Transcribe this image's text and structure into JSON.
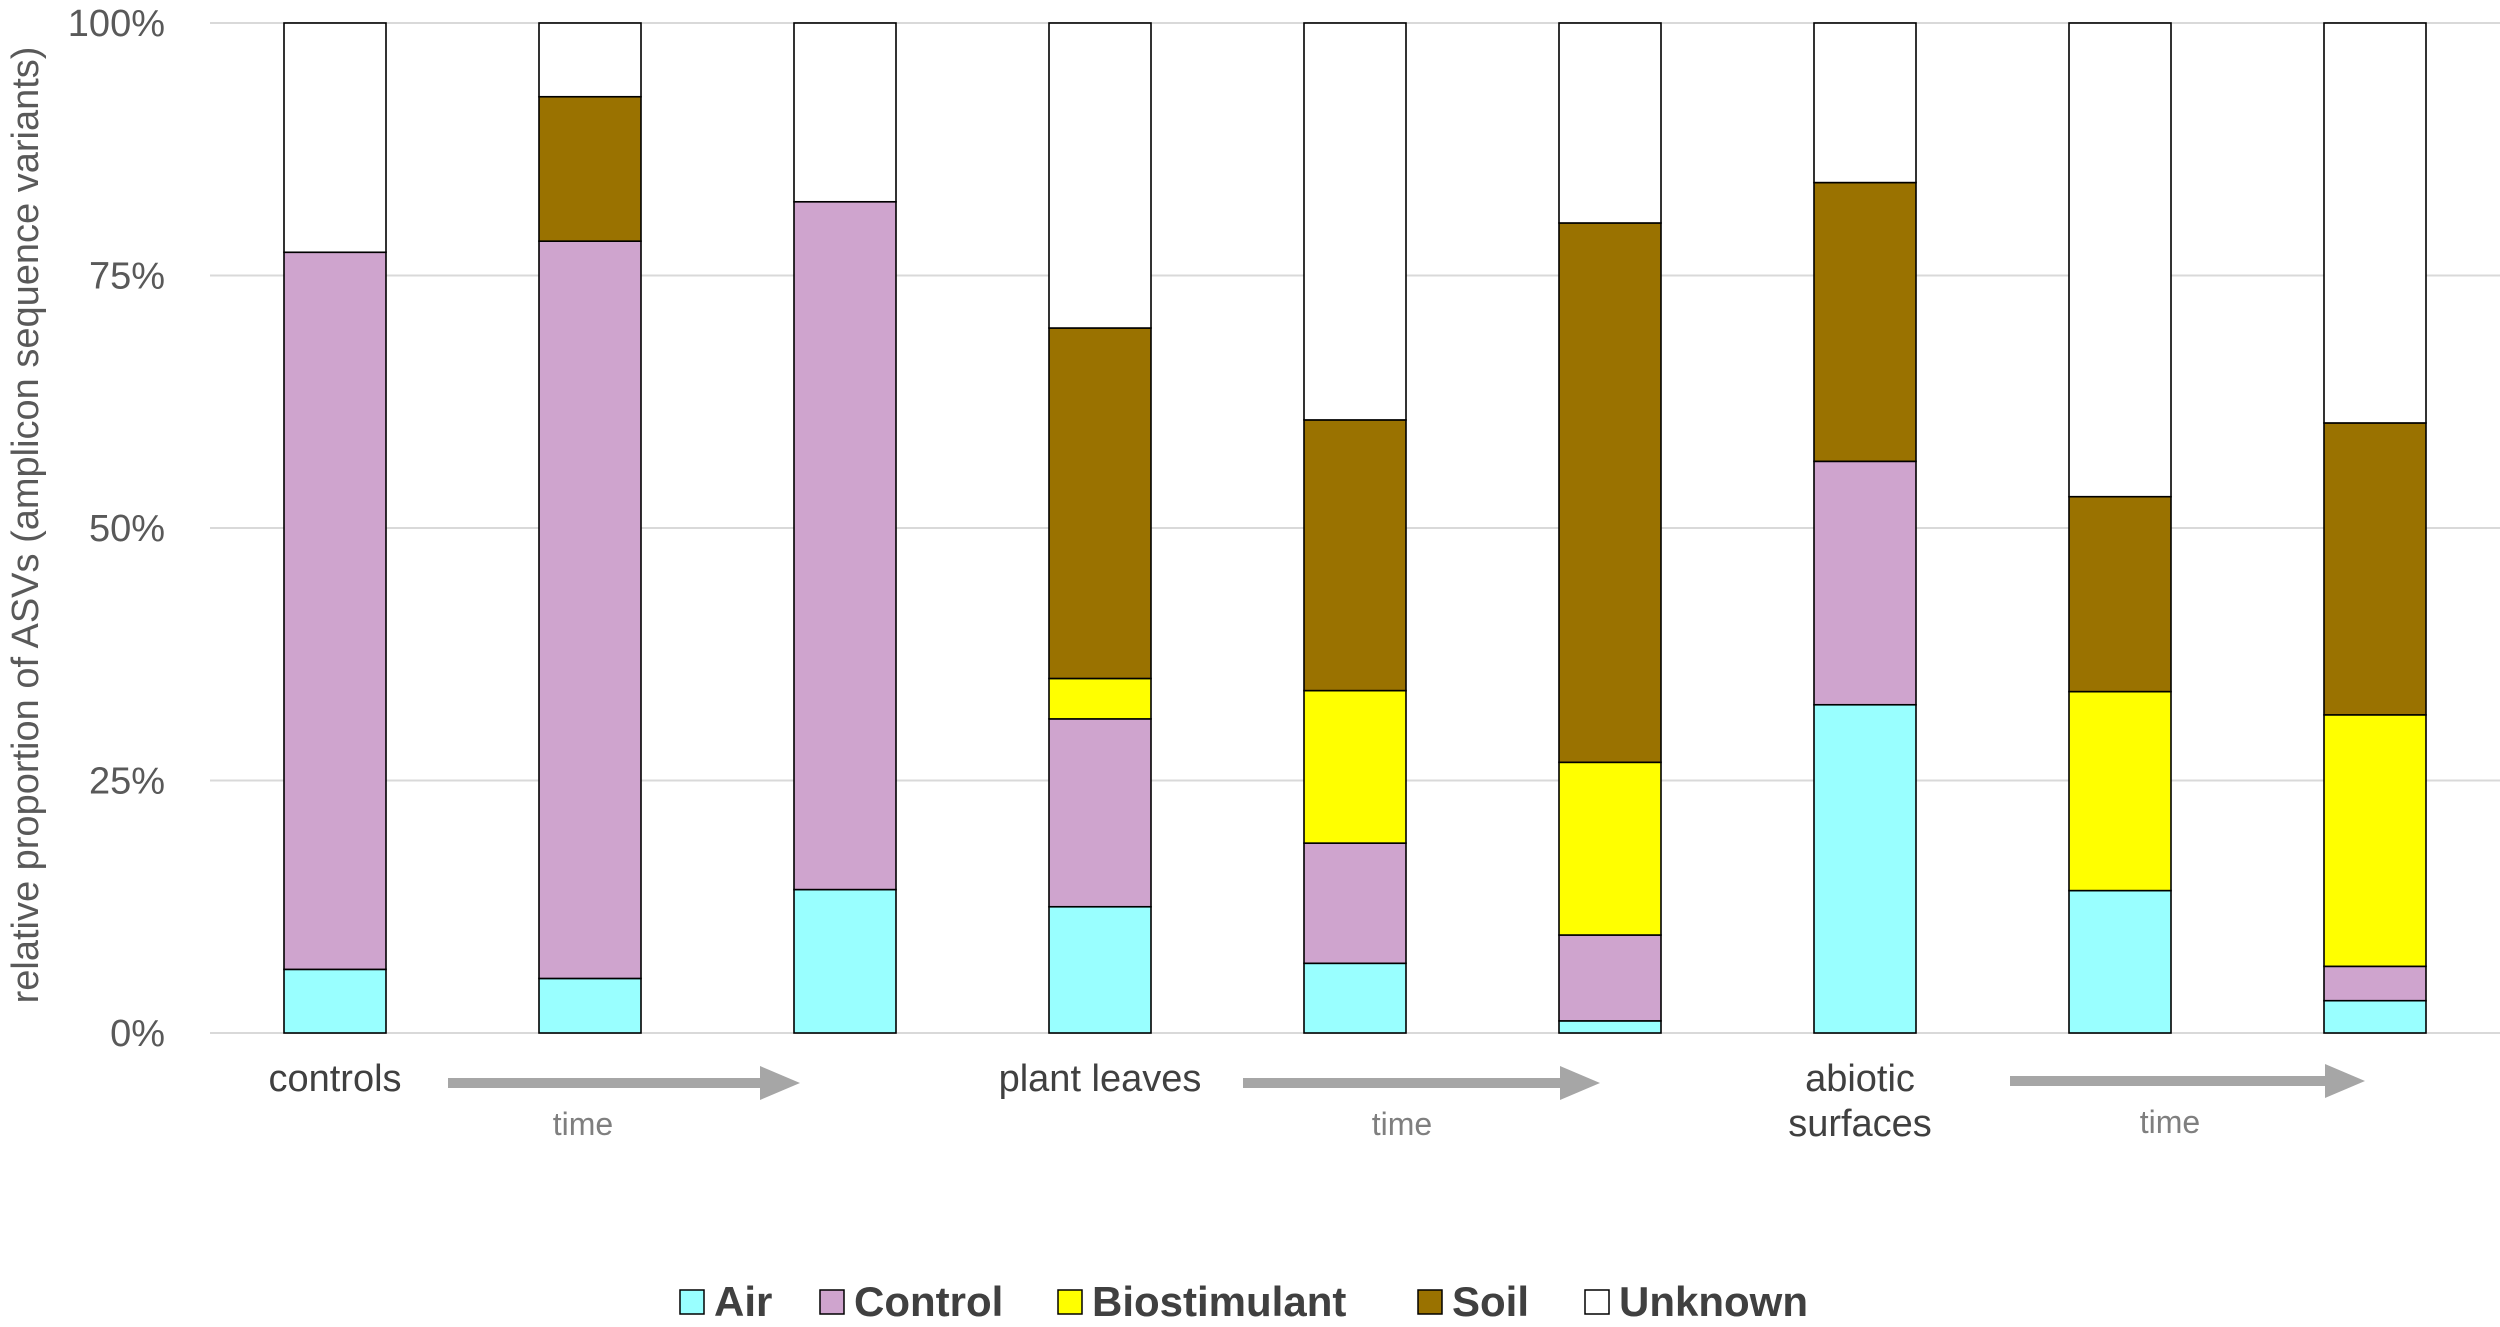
{
  "chart_data": {
    "type": "bar",
    "stacked": true,
    "percent": true,
    "ylabel": "relative proportion of ASVs (amplicon sequence variants)",
    "xlabel": "",
    "ylim": [
      0,
      100
    ],
    "y_ticks": [
      "0%",
      "25%",
      "50%",
      "75%",
      "100%"
    ],
    "grid": true,
    "legend_position": "bottom",
    "groups": [
      {
        "label": "controls",
        "time_label": "time"
      },
      {
        "label": "plant leaves",
        "time_label": "time"
      },
      {
        "label": "abiotic\nsurfaces",
        "time_label": "time"
      }
    ],
    "categories": [
      "",
      "",
      "",
      "",
      "",
      "",
      "",
      "",
      ""
    ],
    "series": [
      {
        "name": "Air",
        "color": "#99ffff",
        "values": [
          6.3,
          5.4,
          14.2,
          12.5,
          6.9,
          1.2,
          32.5,
          14.1,
          3.2
        ]
      },
      {
        "name": "Control",
        "color": "#cfa4ce",
        "values": [
          71.0,
          73.0,
          68.1,
          18.6,
          11.9,
          8.5,
          24.1,
          0,
          3.4
        ]
      },
      {
        "name": "Biostimulant",
        "color": "#ffff00",
        "values": [
          0,
          0,
          0,
          4.0,
          15.1,
          17.1,
          0,
          19.7,
          24.9
        ]
      },
      {
        "name": "Soil",
        "color": "#9a7200",
        "values": [
          0,
          14.3,
          0,
          34.7,
          26.8,
          53.4,
          27.6,
          19.3,
          28.9
        ]
      },
      {
        "name": "Unknown",
        "color": "#ffffff",
        "values": [
          22.7,
          7.3,
          17.7,
          30.2,
          39.3,
          19.8,
          15.8,
          46.9,
          39.6
        ]
      }
    ]
  }
}
